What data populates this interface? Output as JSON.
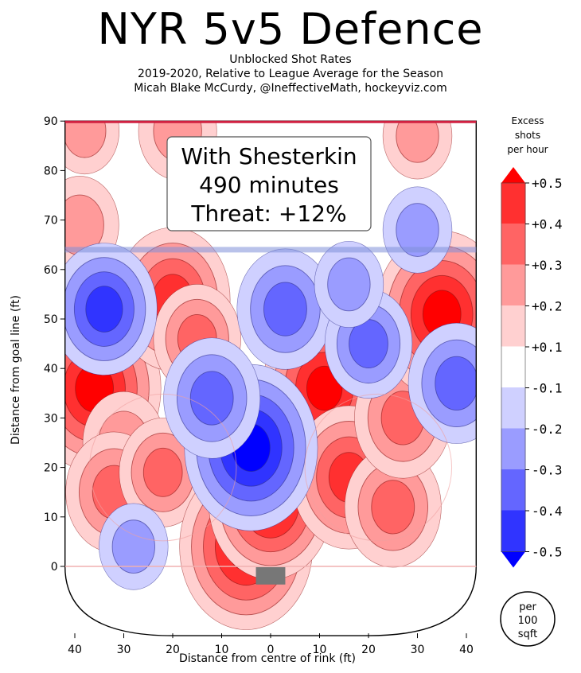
{
  "chart_data": {
    "type": "heatmap",
    "title": "NYR 5v5 Defence",
    "subtitle_lines": [
      "Unblocked Shot Rates",
      "2019-2020, Relative to League Average for the Season",
      "Micah Blake McCurdy, @IneffectiveMath, hockeyviz.com"
    ],
    "xlabel": "Distance from centre of rink (ft)",
    "ylabel": "Distance from goal line (ft)",
    "xlim": [
      -42,
      42
    ],
    "ylim": [
      -14,
      90
    ],
    "xticks": [
      -40,
      -30,
      -20,
      -10,
      0,
      10,
      20,
      30,
      40
    ],
    "xtick_labels": [
      "40",
      "30",
      "20",
      "10",
      "0",
      "10",
      "20",
      "30",
      "40"
    ],
    "yticks": [
      0,
      10,
      20,
      30,
      40,
      50,
      60,
      70,
      80,
      90
    ],
    "ytick_labels": [
      "0",
      "10",
      "20",
      "30",
      "40",
      "50",
      "60",
      "70",
      "80",
      "90"
    ],
    "blue_line_y": 64,
    "annotation_lines": [
      "With Shesterkin",
      "490 minutes",
      "Threat: +12%"
    ],
    "hotspots": [
      {
        "x": -36,
        "y": 36,
        "value": 0.5
      },
      {
        "x": -30,
        "y": 25,
        "value": 0.22
      },
      {
        "x": -32,
        "y": 15,
        "value": 0.3
      },
      {
        "x": -22,
        "y": 19,
        "value": 0.25
      },
      {
        "x": -20,
        "y": 54,
        "value": 0.4
      },
      {
        "x": -15,
        "y": 46,
        "value": 0.25
      },
      {
        "x": -5,
        "y": 4,
        "value": 0.5
      },
      {
        "x": 0,
        "y": 13,
        "value": 0.45
      },
      {
        "x": 11,
        "y": 36,
        "value": 0.45
      },
      {
        "x": 16,
        "y": 18,
        "value": 0.4
      },
      {
        "x": 25,
        "y": 12,
        "value": 0.3
      },
      {
        "x": 27,
        "y": 30,
        "value": 0.3
      },
      {
        "x": 35,
        "y": 51,
        "value": 0.5
      },
      {
        "x": -19,
        "y": 88,
        "value": 0.2
      },
      {
        "x": -38,
        "y": 88,
        "value": 0.15
      },
      {
        "x": 30,
        "y": 87,
        "value": 0.15
      },
      {
        "x": -39,
        "y": 69,
        "value": 0.2
      },
      {
        "x": -4,
        "y": 24,
        "value": -0.5
      },
      {
        "x": -12,
        "y": 34,
        "value": -0.3
      },
      {
        "x": -34,
        "y": 52,
        "value": -0.35
      },
      {
        "x": 3,
        "y": 52,
        "value": -0.3
      },
      {
        "x": 20,
        "y": 45,
        "value": -0.25
      },
      {
        "x": 38,
        "y": 37,
        "value": -0.3
      },
      {
        "x": 30,
        "y": 68,
        "value": -0.15
      },
      {
        "x": -28,
        "y": 4,
        "value": -0.15
      },
      {
        "x": 16,
        "y": 57,
        "value": -0.15
      }
    ],
    "colorbar": {
      "title_lines": [
        "Excess",
        "shots",
        "per hour"
      ],
      "tick_labels": [
        "+0.5",
        "+0.4",
        "+0.3",
        "+0.2",
        "+0.1",
        "-0.1",
        "-0.2",
        "-0.3",
        "-0.4",
        "-0.5"
      ],
      "levels": [
        0.5,
        0.4,
        0.3,
        0.2,
        0.1,
        -0.1,
        -0.2,
        -0.3,
        -0.4,
        -0.5
      ],
      "colors": [
        "#ff0000",
        "#ff3030",
        "#ff6464",
        "#ff9a9a",
        "#ffd0d0",
        "#ffffff",
        "#cfd0ff",
        "#9a9cff",
        "#6466ff",
        "#3034ff",
        "#0000ff"
      ],
      "unit_lines": [
        "per",
        "100",
        "sqft"
      ]
    }
  }
}
